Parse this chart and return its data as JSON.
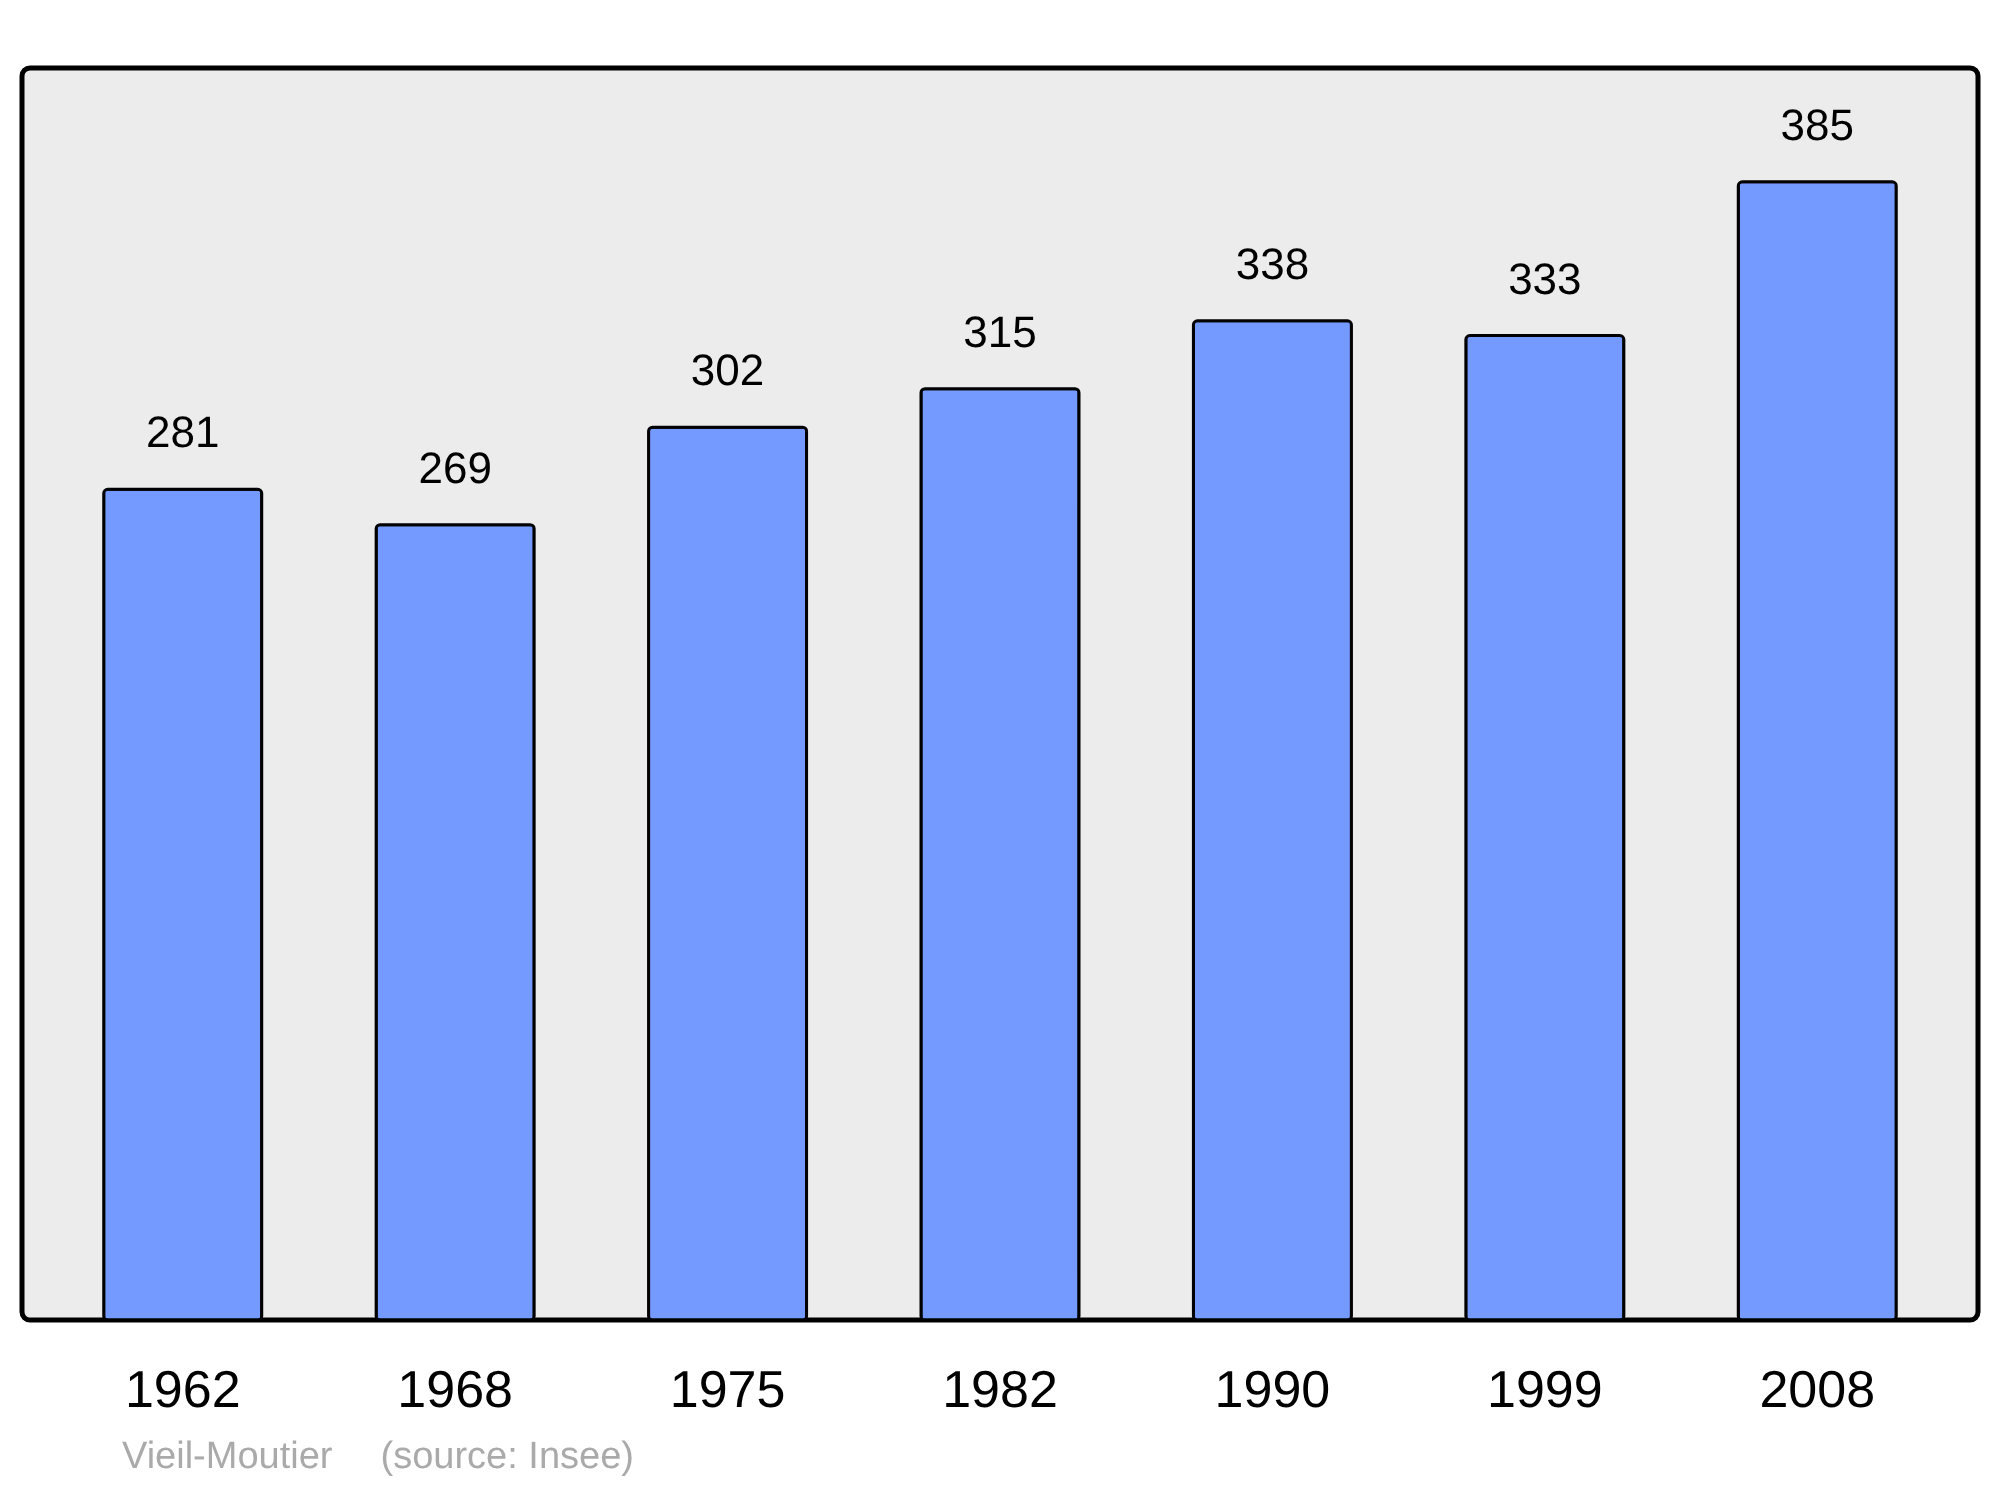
{
  "chart_data": {
    "type": "bar",
    "categories": [
      "1962",
      "1968",
      "1975",
      "1982",
      "1990",
      "1999",
      "2008"
    ],
    "values": [
      281,
      269,
      302,
      315,
      338,
      333,
      385
    ],
    "color": "#7499ff",
    "data_labels": true,
    "annotations": [
      "Vieil-Moutier",
      "(source: Insee)"
    ]
  }
}
